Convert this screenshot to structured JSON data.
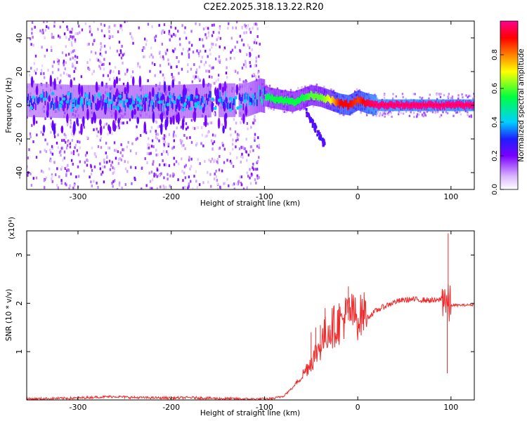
{
  "title": "C2E2.2025.318.13.22.R20",
  "chart_data": [
    {
      "type": "heatmap",
      "xlabel": "Height of straight line (km)",
      "ylabel": "Frequency (Hz)",
      "xlim": [
        -355,
        125
      ],
      "ylim": [
        -50,
        50
      ],
      "xticks": [
        -300,
        -200,
        -100,
        0,
        100
      ],
      "yticks": [
        -40,
        -20,
        0,
        20,
        40
      ],
      "colorbar": {
        "label": "Normalized spectral amplitude",
        "range": [
          0.0,
          1.0
        ],
        "ticks": [
          0.0,
          0.2,
          0.4,
          0.6,
          0.8
        ],
        "colormap": "rainbow: white → violet → blue → cyan → green → yellow → red → pink"
      },
      "ridge": {
        "x": [
          -350,
          -300,
          -250,
          -200,
          -150,
          -120,
          -105,
          -90,
          -80,
          -70,
          -60,
          -50,
          -40,
          -30,
          -20,
          -10,
          0,
          10,
          20,
          60,
          100,
          125
        ],
        "frequency_hz": [
          3,
          2,
          2,
          2,
          3,
          3,
          6,
          4,
          3,
          2,
          4,
          6,
          5,
          3,
          1,
          0,
          3,
          1,
          0,
          0,
          0,
          0
        ],
        "amplitude": [
          0.35,
          0.4,
          0.4,
          0.4,
          0.4,
          0.4,
          0.5,
          0.55,
          0.55,
          0.55,
          0.55,
          0.6,
          0.6,
          0.7,
          0.9,
          0.9,
          0.85,
          0.95,
          1.0,
          1.0,
          1.0,
          1.0
        ]
      }
    },
    {
      "type": "line",
      "xlabel": "Height of straight line (km)",
      "ylabel": "SNR (10 * v/v)",
      "y_multiplier": "(x10⁴)",
      "xlim": [
        -355,
        125
      ],
      "ylim": [
        0,
        3.5
      ],
      "xticks": [
        -300,
        -200,
        -100,
        0,
        100
      ],
      "yticks": [
        1,
        2,
        3
      ],
      "color": "#ee2a2a",
      "series": [
        {
          "x": [
            -355,
            -300,
            -280,
            -260,
            -240,
            -200,
            -180,
            -150,
            -120,
            -100,
            -90,
            -80,
            -70,
            -60,
            -50,
            -40,
            -35,
            -30,
            -25,
            -20,
            -15,
            -10,
            -5,
            0,
            10,
            20,
            30,
            40,
            50,
            60,
            70,
            80,
            85,
            90,
            93,
            95,
            97,
            100,
            110,
            125
          ],
          "values": [
            0.02,
            0.04,
            0.06,
            0.07,
            0.05,
            0.04,
            0.05,
            0.03,
            0.02,
            0.02,
            0.03,
            0.08,
            0.25,
            0.45,
            0.7,
            1.0,
            1.2,
            1.3,
            1.35,
            1.4,
            1.5,
            1.65,
            1.6,
            1.5,
            1.7,
            1.85,
            1.95,
            2.03,
            2.07,
            2.08,
            2.07,
            2.06,
            2.05,
            2.1,
            2.2,
            2.0,
            1.95,
            1.96,
            1.96,
            1.97
          ],
          "spikes": [
            {
              "x": -50,
              "value": 1.4
            },
            {
              "x": -45,
              "value": 1.5
            },
            {
              "x": -40,
              "value": 1.55
            },
            {
              "x": -35,
              "value": 1.9
            },
            {
              "x": -30,
              "value": 1.55
            },
            {
              "x": -25,
              "value": 1.3
            },
            {
              "x": -20,
              "value": 2.0
            },
            {
              "x": -15,
              "value": 1.7
            },
            {
              "x": -10,
              "value": 2.35
            },
            {
              "x": 97,
              "value": 3.45
            },
            {
              "x": 96,
              "value": 0.55
            }
          ]
        }
      ]
    }
  ]
}
